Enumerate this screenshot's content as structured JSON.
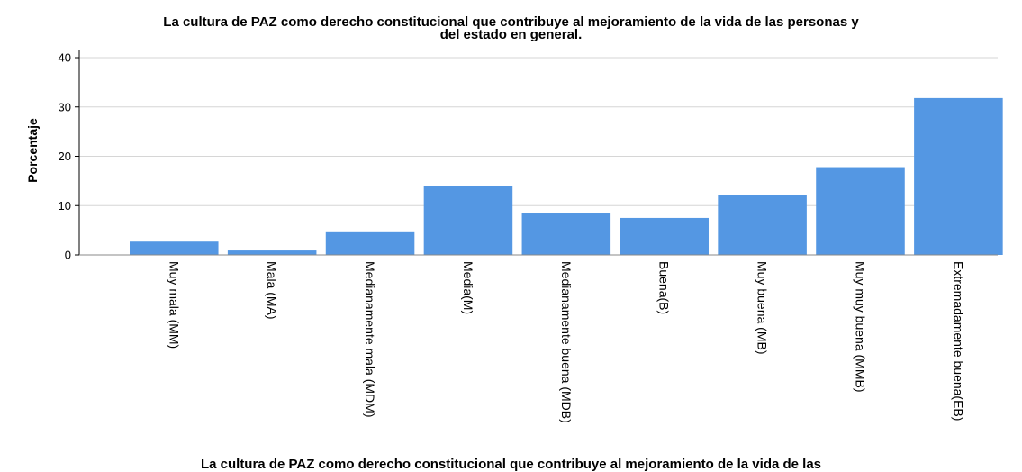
{
  "chart_data": {
    "type": "bar",
    "title_line1": "La cultura de PAZ como derecho constitucional que contribuye al mejoramiento de la vida de las personas y",
    "title_line2": "del estado en general.",
    "xlabel": "La cultura de PAZ como derecho constitucional que contribuye al mejoramiento de la vida de las",
    "ylabel": "Porcentaje",
    "ylim": [
      0,
      40
    ],
    "yticks": [
      0,
      10,
      20,
      30,
      40
    ],
    "grid": true,
    "categories": [
      "Muy mala (MM)",
      "Mala (MA)",
      "Medianamente mala (MDM)",
      "Media(M)",
      "Medianamente buena (MDB)",
      "Buena(B)",
      "Muy buena (MB)",
      "Muy muy buena (MMB)",
      "Extremadamente buena(EB)"
    ],
    "values": [
      2.7,
      0.9,
      4.6,
      14.0,
      8.4,
      7.5,
      12.1,
      17.8,
      31.8
    ],
    "bar_color": "#5497e3",
    "grid_color": "#d6d6d6"
  }
}
